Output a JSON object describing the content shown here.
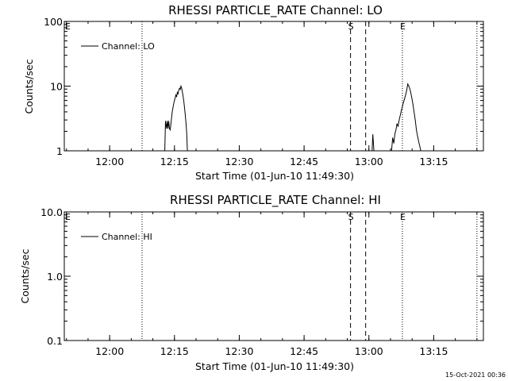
{
  "chart_data": [
    {
      "type": "line",
      "title": "RHESSI PARTICLE_RATE Channel: LO",
      "xlabel": "Start Time (01-Jun-10 11:49:30)",
      "ylabel": "Counts/sec",
      "yscale": "log",
      "ylim": [
        1,
        100
      ],
      "xlim": [
        "11:49:30",
        "13:26:30"
      ],
      "xticks": [
        "12:00",
        "12:15",
        "12:30",
        "12:45",
        "13:00",
        "13:15"
      ],
      "yticks": [
        "1",
        "10",
        "100"
      ],
      "legend": {
        "label": "Channel: LO",
        "position": "top-left"
      },
      "markers": [
        {
          "label": "E",
          "time": "11:49:30",
          "style": "dotted"
        },
        {
          "label": "",
          "time": "12:07:30",
          "style": "dotted"
        },
        {
          "label": "S",
          "time": "12:55:45",
          "style": "dashed"
        },
        {
          "label": "",
          "time": "12:59:15",
          "style": "dashed"
        },
        {
          "label": "E",
          "time": "13:07:45",
          "style": "dotted"
        },
        {
          "label": "",
          "time": "13:25:00",
          "style": "dotted"
        }
      ],
      "series": [
        {
          "name": "Channel: LO",
          "segments": [
            [
              [
                "12:12:45",
                1.0
              ],
              [
                "12:12:55",
                2.9
              ],
              [
                "12:13:10",
                2.2
              ],
              [
                "12:13:20",
                2.9
              ],
              [
                "12:13:30",
                2.2
              ],
              [
                "12:13:40",
                2.9
              ],
              [
                "12:13:50",
                2.2
              ],
              [
                "12:14:00",
                2.1
              ],
              [
                "12:14:10",
                2.6
              ],
              [
                "12:14:20",
                3.3
              ],
              [
                "12:14:30",
                4.1
              ],
              [
                "12:14:40",
                4.7
              ],
              [
                "12:14:50",
                5.4
              ],
              [
                "12:15:00",
                6.0
              ],
              [
                "12:15:10",
                6.6
              ],
              [
                "12:15:20",
                7.3
              ],
              [
                "12:15:30",
                6.8
              ],
              [
                "12:15:40",
                8.0
              ],
              [
                "12:15:50",
                7.6
              ],
              [
                "12:16:00",
                8.6
              ],
              [
                "12:16:10",
                9.3
              ],
              [
                "12:16:20",
                8.9
              ],
              [
                "12:16:30",
                10.0
              ],
              [
                "12:16:40",
                9.3
              ],
              [
                "12:16:50",
                8.1
              ],
              [
                "12:17:00",
                6.9
              ],
              [
                "12:17:10",
                5.8
              ],
              [
                "12:17:20",
                4.6
              ],
              [
                "12:17:30",
                3.6
              ],
              [
                "12:17:40",
                2.7
              ],
              [
                "12:17:50",
                1.9
              ],
              [
                "12:18:00",
                1.0
              ]
            ],
            [
              [
                "13:00:45",
                1.0
              ],
              [
                "13:00:55",
                1.8
              ],
              [
                "13:01:10",
                1.0
              ]
            ],
            [
              [
                "13:05:15",
                1.0
              ],
              [
                "13:05:30",
                1.6
              ],
              [
                "13:05:45",
                1.3
              ],
              [
                "13:06:00",
                1.8
              ],
              [
                "13:06:15",
                2.1
              ],
              [
                "13:06:30",
                2.6
              ],
              [
                "13:06:45",
                2.4
              ],
              [
                "13:07:00",
                3.0
              ],
              [
                "13:07:15",
                3.5
              ],
              [
                "13:07:30",
                4.2
              ],
              [
                "13:07:45",
                4.8
              ],
              [
                "13:08:00",
                5.6
              ],
              [
                "13:08:15",
                6.4
              ],
              [
                "13:08:30",
                7.3
              ],
              [
                "13:08:45",
                8.6
              ],
              [
                "13:09:00",
                10.8
              ],
              [
                "13:09:15",
                10.0
              ],
              [
                "13:09:30",
                8.9
              ],
              [
                "13:09:45",
                7.6
              ],
              [
                "13:10:00",
                6.2
              ],
              [
                "13:10:15",
                5.0
              ],
              [
                "13:10:30",
                3.8
              ],
              [
                "13:10:45",
                2.9
              ],
              [
                "13:11:00",
                2.1
              ],
              [
                "13:11:15",
                1.7
              ],
              [
                "13:11:30",
                1.4
              ],
              [
                "13:11:45",
                1.2
              ],
              [
                "13:12:00",
                1.0
              ]
            ]
          ]
        }
      ]
    },
    {
      "type": "line",
      "title": "RHESSI PARTICLE_RATE Channel: HI",
      "xlabel": "Start Time (01-Jun-10 11:49:30)",
      "ylabel": "Counts/sec",
      "yscale": "log",
      "ylim": [
        0.1,
        10
      ],
      "xlim": [
        "11:49:30",
        "13:26:30"
      ],
      "xticks": [
        "12:00",
        "12:15",
        "12:30",
        "12:45",
        "13:00",
        "13:15"
      ],
      "yticks": [
        "0.1",
        "1.0",
        "10.0"
      ],
      "legend": {
        "label": "Channel: HI",
        "position": "top-left"
      },
      "markers": [
        {
          "label": "E",
          "time": "11:49:30",
          "style": "dotted"
        },
        {
          "label": "",
          "time": "12:07:30",
          "style": "dotted"
        },
        {
          "label": "S",
          "time": "12:55:45",
          "style": "dashed"
        },
        {
          "label": "",
          "time": "12:59:15",
          "style": "dashed"
        },
        {
          "label": "E",
          "time": "13:07:45",
          "style": "dotted"
        },
        {
          "label": "",
          "time": "13:25:00",
          "style": "dotted"
        }
      ],
      "series": [
        {
          "name": "Channel: HI",
          "segments": []
        }
      ]
    }
  ],
  "footer": {
    "timestamp": "15-Oct-2021 00:36"
  }
}
